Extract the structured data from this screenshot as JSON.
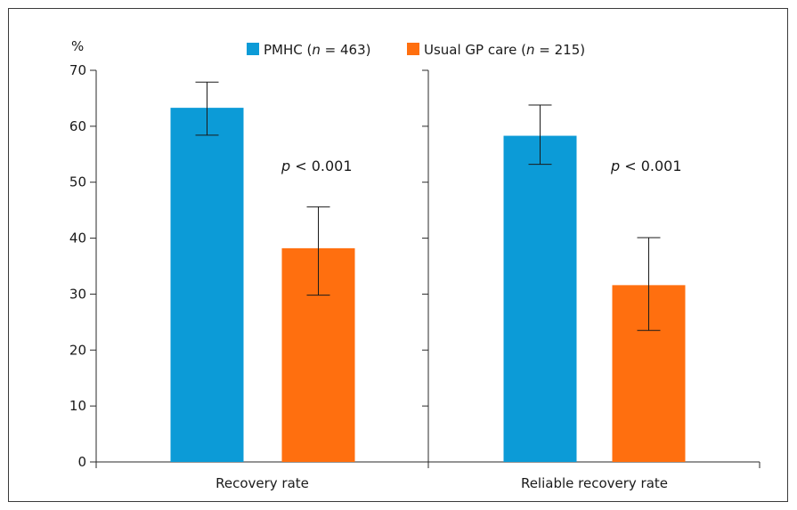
{
  "chart_data": {
    "type": "bar",
    "y_unit_label": "%",
    "ylim": [
      0,
      70
    ],
    "yticks": [
      0,
      10,
      20,
      30,
      40,
      50,
      60,
      70
    ],
    "grid": false,
    "legend_position": "top",
    "categories": [
      "Recovery rate",
      "Reliable recovery rate"
    ],
    "series": [
      {
        "name_main": "PMHC (",
        "name_italic": "n",
        "name_rest": " = 463)",
        "color": "#0c9bd7",
        "values": [
          63.3,
          58.3
        ],
        "error_low": [
          58.4,
          53.2
        ],
        "error_high": [
          67.9,
          63.8
        ]
      },
      {
        "name_main": "Usual GP care (",
        "name_italic": "n",
        "name_rest": " = 215)",
        "color": "#ff6f0f",
        "values": [
          38.2,
          31.6
        ],
        "error_low": [
          29.8,
          23.5
        ],
        "error_high": [
          45.6,
          40.1
        ]
      }
    ],
    "annotations": [
      {
        "italic": "p",
        "text": " < 0.001",
        "category_index": 0
      },
      {
        "italic": "p",
        "text": " < 0.001",
        "category_index": 1
      }
    ]
  }
}
